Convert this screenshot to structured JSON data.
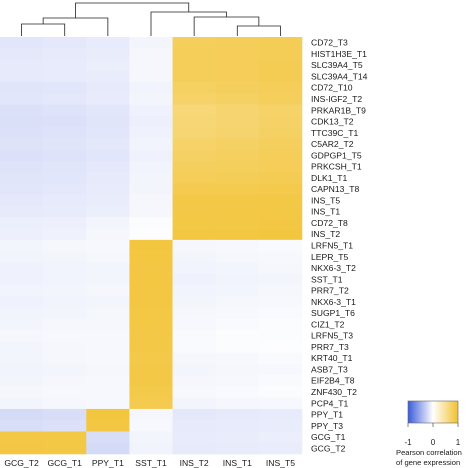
{
  "chart_data": {
    "type": "heatmap",
    "columns": [
      "GCG_T2",
      "GCG_T1",
      "PPY_T1",
      "SST_T1",
      "INS_T2",
      "INS_T1",
      "INS_T5"
    ],
    "rows": [
      "CD72_T3",
      "HIST1H3E_T1",
      "SLC39A4_T5",
      "SLC39A4_T14",
      "CD72_T10",
      "INS-IGF2_T2",
      "PRKAR1B_T9",
      "CDK13_T2",
      "TTC39C_T1",
      "C5AR2_T2",
      "GDPGP1_T5",
      "PRKCSH_T1",
      "DLK1_T1",
      "CAPN13_T8",
      "INS_T5",
      "INS_T1",
      "CD72_T8",
      "INS_T2",
      "LRFN5_T1",
      "LEPR_T5",
      "NKX6-3_T2",
      "SST_T1",
      "PRR7_T2",
      "NKX6-3_T1",
      "SUGP1_T6",
      "CIZ1_T2",
      "LRFN5_T3",
      "PRR7_T3",
      "KRT40_T1",
      "ASB7_T3",
      "EIF2B4_T8",
      "ZNF430_T2",
      "PCP4_T1",
      "PPY_T1",
      "PPY_T3",
      "GCG_T1",
      "GCG_T2"
    ],
    "values": [
      [
        -0.15,
        -0.14,
        -0.12,
        -0.06,
        0.78,
        0.79,
        0.81
      ],
      [
        -0.14,
        -0.13,
        -0.11,
        -0.05,
        0.79,
        0.8,
        0.81
      ],
      [
        -0.13,
        -0.12,
        -0.1,
        -0.05,
        0.79,
        0.8,
        0.82
      ],
      [
        -0.13,
        -0.12,
        -0.11,
        -0.05,
        0.79,
        0.8,
        0.82
      ],
      [
        -0.16,
        -0.15,
        -0.13,
        -0.07,
        0.75,
        0.77,
        0.8
      ],
      [
        -0.15,
        -0.14,
        -0.12,
        -0.06,
        0.72,
        0.74,
        0.78
      ],
      [
        -0.18,
        -0.17,
        -0.15,
        -0.08,
        0.65,
        0.68,
        0.72
      ],
      [
        -0.19,
        -0.18,
        -0.16,
        -0.09,
        0.66,
        0.69,
        0.73
      ],
      [
        -0.18,
        -0.17,
        -0.15,
        -0.08,
        0.67,
        0.7,
        0.74
      ],
      [
        -0.17,
        -0.16,
        -0.14,
        -0.07,
        0.72,
        0.74,
        0.77
      ],
      [
        -0.18,
        -0.17,
        -0.15,
        -0.08,
        0.74,
        0.76,
        0.79
      ],
      [
        -0.17,
        -0.16,
        -0.14,
        -0.07,
        0.77,
        0.78,
        0.8
      ],
      [
        -0.16,
        -0.15,
        -0.13,
        -0.06,
        0.8,
        0.81,
        0.82
      ],
      [
        -0.15,
        -0.14,
        -0.12,
        -0.06,
        0.84,
        0.84,
        0.85
      ],
      [
        -0.14,
        -0.13,
        -0.11,
        -0.05,
        0.88,
        0.88,
        0.89
      ],
      [
        -0.13,
        -0.12,
        -0.1,
        -0.05,
        0.88,
        0.89,
        0.89
      ],
      [
        -0.1,
        -0.09,
        -0.06,
        -0.02,
        0.89,
        0.89,
        0.9
      ],
      [
        -0.09,
        -0.08,
        -0.05,
        -0.01,
        0.91,
        0.91,
        0.92
      ],
      [
        -0.06,
        -0.05,
        -0.04,
        0.92,
        -0.05,
        -0.04,
        -0.03
      ],
      [
        -0.07,
        -0.06,
        -0.05,
        0.91,
        -0.06,
        -0.05,
        -0.04
      ],
      [
        -0.08,
        -0.07,
        -0.06,
        0.9,
        -0.07,
        -0.06,
        -0.05
      ],
      [
        -0.08,
        -0.07,
        -0.06,
        0.91,
        -0.08,
        -0.07,
        -0.06
      ],
      [
        -0.07,
        -0.06,
        -0.05,
        0.9,
        -0.07,
        -0.06,
        -0.05
      ],
      [
        -0.08,
        -0.07,
        -0.06,
        0.9,
        -0.06,
        -0.05,
        -0.04
      ],
      [
        -0.07,
        -0.06,
        -0.05,
        0.89,
        -0.05,
        -0.04,
        -0.03
      ],
      [
        -0.06,
        -0.05,
        -0.05,
        0.89,
        -0.04,
        -0.03,
        -0.02
      ],
      [
        -0.05,
        -0.04,
        -0.04,
        0.88,
        -0.03,
        -0.02,
        -0.02
      ],
      [
        -0.06,
        -0.05,
        -0.04,
        0.88,
        -0.03,
        -0.02,
        -0.01
      ],
      [
        -0.06,
        -0.05,
        -0.04,
        0.87,
        -0.05,
        -0.04,
        -0.03
      ],
      [
        -0.07,
        -0.06,
        -0.05,
        0.88,
        -0.06,
        -0.05,
        -0.04
      ],
      [
        -0.06,
        -0.05,
        -0.04,
        0.88,
        -0.05,
        -0.04,
        -0.03
      ],
      [
        -0.05,
        -0.04,
        -0.04,
        0.86,
        -0.04,
        -0.03,
        -0.02
      ],
      [
        -0.06,
        -0.05,
        -0.04,
        0.84,
        -0.06,
        -0.05,
        -0.04
      ],
      [
        -0.22,
        -0.2,
        0.92,
        -0.05,
        -0.14,
        -0.13,
        -0.12
      ],
      [
        -0.2,
        -0.18,
        0.9,
        -0.04,
        -0.13,
        -0.12,
        -0.11
      ],
      [
        0.88,
        0.89,
        -0.2,
        -0.06,
        -0.12,
        -0.11,
        -0.1
      ],
      [
        0.9,
        0.89,
        -0.22,
        -0.07,
        -0.13,
        -0.12,
        -0.11
      ]
    ],
    "dendrogram_order": [
      "GCG_T2",
      "GCG_T1",
      "PPY_T1",
      "SST_T1",
      "INS_T2",
      "INS_T1",
      "INS_T5"
    ],
    "colorbar": {
      "range": [
        -1,
        1
      ],
      "ticks": [
        "-1",
        "0",
        "1"
      ],
      "colors": [
        "#3b5bdb",
        "#ffffff",
        "#f2c12e"
      ],
      "title_lines": [
        "Pearson correlation",
        "of gene expression"
      ]
    }
  }
}
